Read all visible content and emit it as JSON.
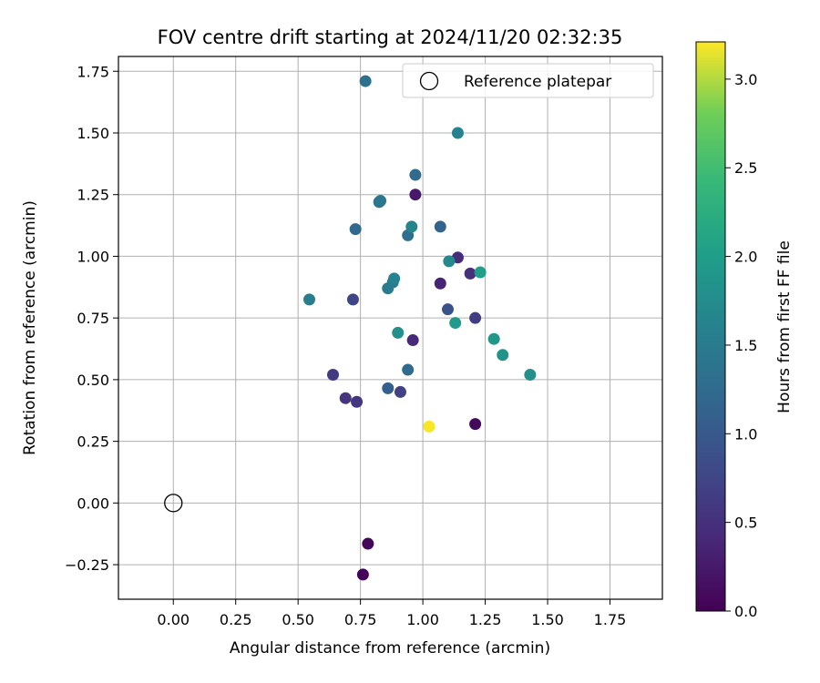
{
  "chart_data": {
    "type": "scatter",
    "title": "FOV centre drift starting at 2024/11/20 02:32:35",
    "xlabel": "Angular distance from reference (arcmin)",
    "ylabel": "Rotation from reference (arcmin)",
    "xlim": [
      -0.22,
      1.96
    ],
    "ylim": [
      -0.39,
      1.81
    ],
    "xticks": [
      "0.00",
      "0.25",
      "0.50",
      "0.75",
      "1.00",
      "1.25",
      "1.50",
      "1.75"
    ],
    "xtick_values": [
      0,
      0.25,
      0.5,
      0.75,
      1.0,
      1.25,
      1.5,
      1.75
    ],
    "yticks": [
      "−0.25",
      "0.00",
      "0.25",
      "0.50",
      "0.75",
      "1.00",
      "1.25",
      "1.50",
      "1.75"
    ],
    "ytick_values": [
      -0.25,
      0,
      0.25,
      0.5,
      0.75,
      1.0,
      1.25,
      1.5,
      1.75
    ],
    "grid": true,
    "legend": {
      "placement": "top-right",
      "entries": [
        "Reference platepar"
      ]
    },
    "reference_point": {
      "x": 0.0,
      "y": 0.0
    },
    "colorbar": {
      "label": "Hours from first FF file",
      "range": [
        0.0,
        3.21
      ],
      "ticks": [
        "0.0",
        "0.5",
        "1.0",
        "1.5",
        "2.0",
        "2.5",
        "3.0"
      ],
      "tick_values": [
        0.0,
        0.5,
        1.0,
        1.5,
        2.0,
        2.5,
        3.0
      ],
      "colormap": "viridis"
    },
    "points": [
      {
        "x": 0.78,
        "y": -0.165,
        "c": 0.05
      },
      {
        "x": 0.76,
        "y": -0.29,
        "c": 0.02
      },
      {
        "x": 1.21,
        "y": 0.32,
        "c": 0.08
      },
      {
        "x": 0.97,
        "y": 1.25,
        "c": 0.25
      },
      {
        "x": 1.07,
        "y": 0.89,
        "c": 0.35
      },
      {
        "x": 0.96,
        "y": 0.66,
        "c": 0.4
      },
      {
        "x": 1.14,
        "y": 0.995,
        "c": 0.45
      },
      {
        "x": 1.19,
        "y": 0.93,
        "c": 0.5
      },
      {
        "x": 0.69,
        "y": 0.425,
        "c": 0.55
      },
      {
        "x": 0.735,
        "y": 0.41,
        "c": 0.58
      },
      {
        "x": 0.64,
        "y": 0.52,
        "c": 0.62
      },
      {
        "x": 1.21,
        "y": 0.75,
        "c": 0.65
      },
      {
        "x": 0.91,
        "y": 0.45,
        "c": 0.7
      },
      {
        "x": 0.72,
        "y": 0.825,
        "c": 0.75
      },
      {
        "x": 1.1,
        "y": 0.785,
        "c": 0.9
      },
      {
        "x": 0.86,
        "y": 0.465,
        "c": 1.1
      },
      {
        "x": 1.07,
        "y": 1.12,
        "c": 1.15
      },
      {
        "x": 0.73,
        "y": 1.11,
        "c": 1.2
      },
      {
        "x": 0.94,
        "y": 0.54,
        "c": 1.25
      },
      {
        "x": 0.97,
        "y": 1.33,
        "c": 1.25
      },
      {
        "x": 0.94,
        "y": 1.085,
        "c": 1.3
      },
      {
        "x": 0.77,
        "y": 1.71,
        "c": 1.35
      },
      {
        "x": 0.825,
        "y": 1.22,
        "c": 1.4
      },
      {
        "x": 0.83,
        "y": 1.225,
        "c": 1.45
      },
      {
        "x": 0.86,
        "y": 0.87,
        "c": 1.5
      },
      {
        "x": 0.88,
        "y": 0.895,
        "c": 1.5
      },
      {
        "x": 0.545,
        "y": 0.825,
        "c": 1.55
      },
      {
        "x": 0.885,
        "y": 0.91,
        "c": 1.6
      },
      {
        "x": 0.955,
        "y": 1.12,
        "c": 1.65
      },
      {
        "x": 1.105,
        "y": 0.98,
        "c": 1.7
      },
      {
        "x": 1.14,
        "y": 1.5,
        "c": 1.6
      },
      {
        "x": 0.9,
        "y": 0.69,
        "c": 1.8
      },
      {
        "x": 1.43,
        "y": 0.52,
        "c": 1.8
      },
      {
        "x": 1.32,
        "y": 0.6,
        "c": 1.85
      },
      {
        "x": 1.285,
        "y": 0.665,
        "c": 1.9
      },
      {
        "x": 1.13,
        "y": 0.73,
        "c": 1.95
      },
      {
        "x": 1.23,
        "y": 0.935,
        "c": 2.0
      },
      {
        "x": 1.025,
        "y": 0.31,
        "c": 3.2
      }
    ]
  }
}
